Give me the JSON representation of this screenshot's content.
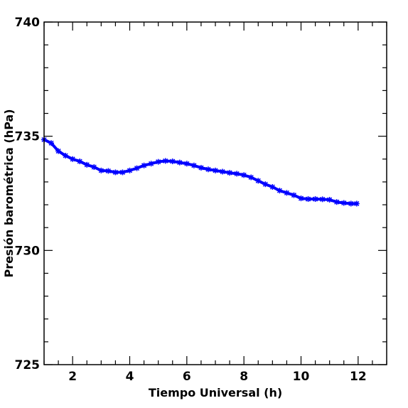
{
  "chart_data": {
    "type": "line",
    "title": "",
    "xlabel": "Tiempo Universal (h)",
    "ylabel": "Presión barométrica (hPa)",
    "xlim": [
      1,
      13
    ],
    "ylim": [
      725,
      740
    ],
    "xticks": [
      2,
      4,
      6,
      8,
      10,
      12
    ],
    "yticks": [
      725,
      730,
      735,
      740
    ],
    "grid": false,
    "legend": "none",
    "colors": {
      "series": "#0000ff",
      "axes": "#000000"
    },
    "series": [
      {
        "marker": "star",
        "x": [
          1.0,
          1.25,
          1.5,
          1.75,
          2.0,
          2.25,
          2.5,
          2.75,
          3.0,
          3.25,
          3.5,
          3.75,
          4.0,
          4.25,
          4.5,
          4.75,
          5.0,
          5.25,
          5.5,
          5.75,
          6.0,
          6.25,
          6.5,
          6.75,
          7.0,
          7.25,
          7.5,
          7.75,
          8.0,
          8.25,
          8.5,
          8.75,
          9.0,
          9.25,
          9.5,
          9.75,
          10.0,
          10.25,
          10.5,
          10.75,
          11.0,
          11.25,
          11.5,
          11.75,
          11.95
        ],
        "y": [
          734.85,
          734.7,
          734.35,
          734.15,
          734.0,
          733.9,
          733.75,
          733.65,
          733.5,
          733.48,
          733.42,
          733.42,
          733.5,
          733.6,
          733.72,
          733.8,
          733.88,
          733.92,
          733.9,
          733.85,
          733.8,
          733.72,
          733.62,
          733.55,
          733.5,
          733.45,
          733.4,
          733.36,
          733.3,
          733.2,
          733.05,
          732.9,
          732.78,
          732.62,
          732.52,
          732.42,
          732.28,
          732.25,
          732.25,
          732.24,
          732.22,
          732.12,
          732.08,
          732.05,
          732.05
        ]
      }
    ]
  }
}
